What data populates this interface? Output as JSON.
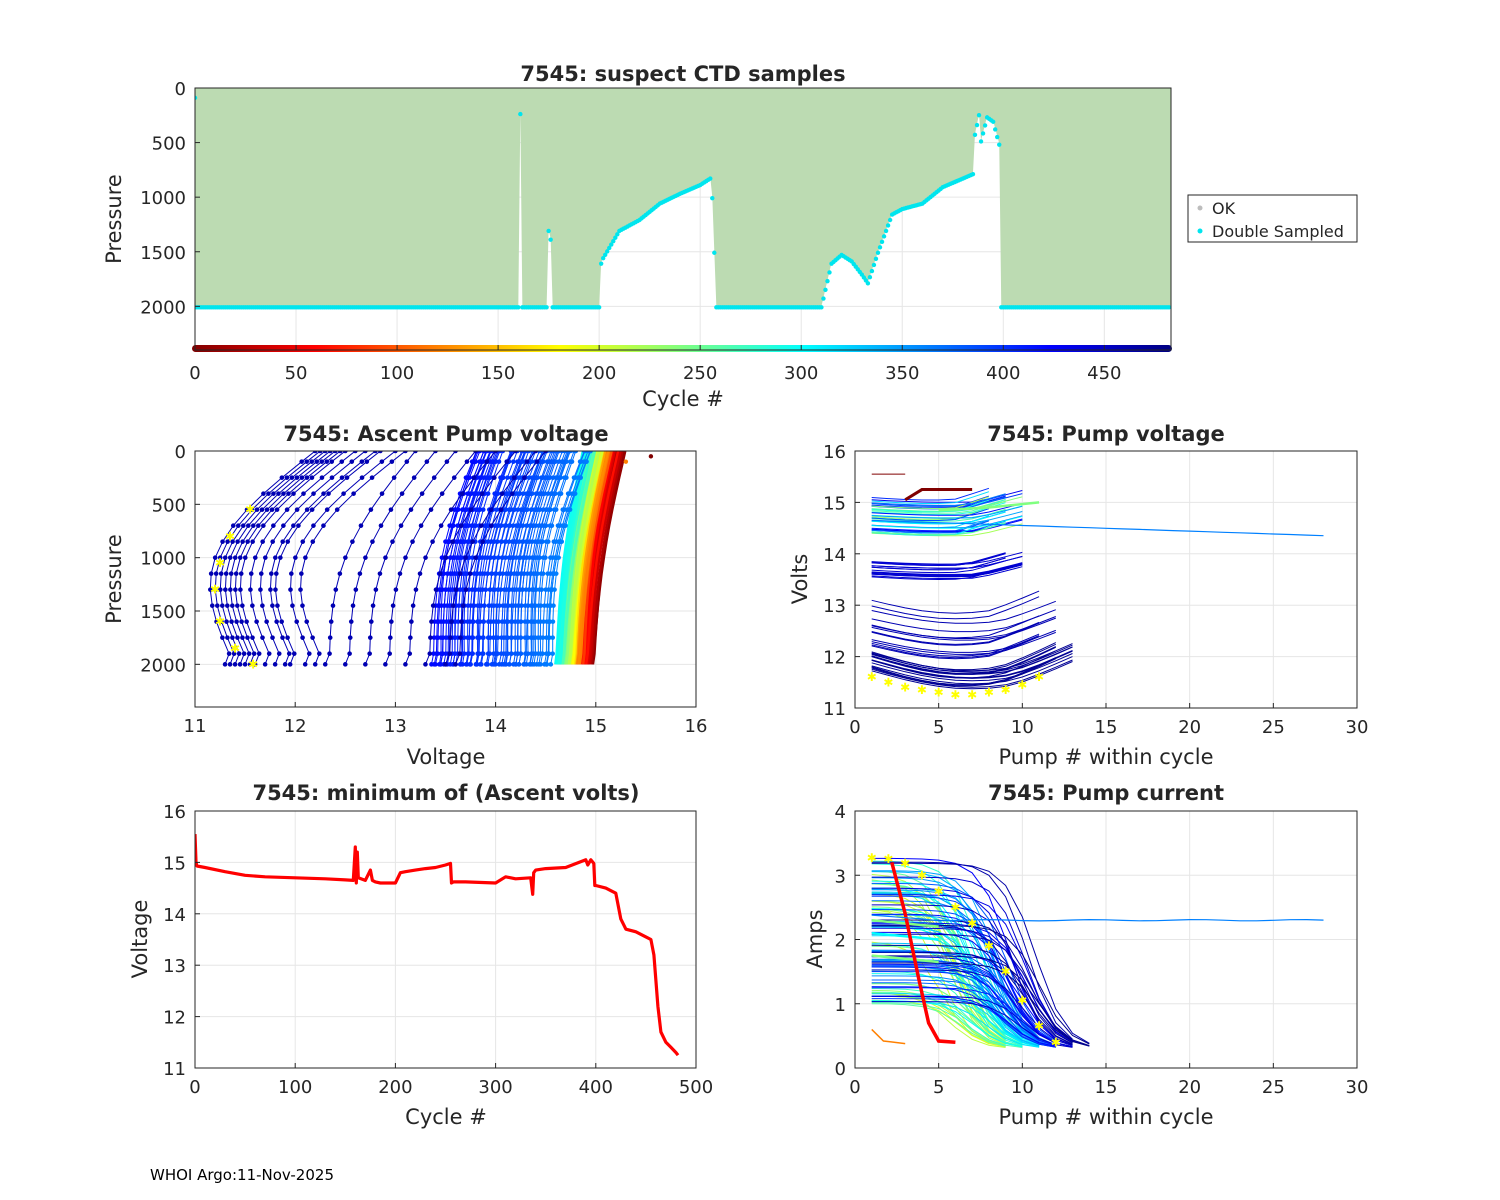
{
  "footer": "WHOI Argo:11-Nov-2025",
  "colors": {
    "ok": "#bcdbb2",
    "double": "#00e5ee",
    "min_line": "#ff0000",
    "star": "#ffff00",
    "grid": "#e6e6e6",
    "axis": "#262626"
  },
  "chart_data": [
    {
      "id": "suspect",
      "type": "area",
      "title": "7545: suspect CTD samples",
      "xlabel": "Cycle #",
      "ylabel": "Pressure",
      "xlim": [
        0,
        483
      ],
      "ylim": [
        2400,
        0
      ],
      "xticks": [
        0,
        50,
        100,
        150,
        200,
        250,
        300,
        350,
        400,
        450
      ],
      "yticks": [
        0,
        500,
        1000,
        1500,
        2000
      ],
      "legend": {
        "position": "right",
        "entries": [
          "OK",
          "Double Sampled"
        ]
      },
      "profile_depth": {
        "cycles": [
          0,
          160,
          161,
          162,
          174,
          175,
          176,
          177,
          178,
          200,
          201,
          202,
          210,
          220,
          230,
          240,
          250,
          255,
          256,
          258,
          259,
          300,
          305,
          310,
          315,
          320,
          325,
          330,
          333,
          338,
          345,
          350,
          360,
          370,
          380,
          385,
          386,
          388,
          389,
          392,
          395,
          398,
          399,
          400,
          483
        ],
        "pressure": [
          2000,
          2000,
          230,
          2000,
          2000,
          1300,
          1380,
          2000,
          2000,
          2000,
          1600,
          1550,
          1300,
          1200,
          1050,
          960,
          880,
          820,
          1000,
          2000,
          2000,
          2000,
          2000,
          2000,
          1600,
          1520,
          1580,
          1700,
          1780,
          1500,
          1150,
          1100,
          1050,
          900,
          820,
          780,
          420,
          240,
          480,
          260,
          300,
          510,
          2000,
          2000,
          2000
        ]
      }
    },
    {
      "id": "ascent",
      "type": "line",
      "title": "7545: Ascent Pump voltage",
      "xlabel": "Voltage",
      "ylabel": "Pressure",
      "xlim": [
        11,
        16
      ],
      "ylim": [
        2400,
        0
      ],
      "xticks": [
        11,
        12,
        13,
        14,
        15,
        16
      ],
      "yticks": [
        0,
        500,
        1000,
        1500,
        2000
      ],
      "series_summary": "one curve per cycle; voltage at 2000 dbar ranges 11.3-14.9 V, colored by cycle number"
    },
    {
      "id": "pumpv",
      "type": "line",
      "title": "7545: Pump voltage",
      "xlabel": "Pump # within cycle",
      "ylabel": "Volts",
      "xlim": [
        0,
        30
      ],
      "ylim": [
        11,
        16
      ],
      "xticks": [
        0,
        5,
        10,
        15,
        20,
        25,
        30
      ],
      "yticks": [
        11,
        12,
        13,
        14,
        15,
        16
      ],
      "series_summary": "per-cycle pump voltage vs pump index; one long cycle with 28 pumps near 14.5 V"
    },
    {
      "id": "minv",
      "type": "line",
      "title": "7545: minimum of (Ascent volts)",
      "xlabel": "Cycle #",
      "ylabel": "Voltage",
      "xlim": [
        0,
        500
      ],
      "ylim": [
        11,
        16
      ],
      "xticks": [
        0,
        100,
        200,
        300,
        400,
        500
      ],
      "yticks": [
        11,
        12,
        13,
        14,
        15,
        16
      ],
      "series": [
        {
          "name": "minimum ascent voltage",
          "x": [
            0,
            1,
            2,
            10,
            30,
            50,
            70,
            100,
            130,
            150,
            158,
            160,
            161,
            162,
            163,
            170,
            175,
            177,
            180,
            185,
            195,
            200,
            205,
            210,
            220,
            230,
            240,
            250,
            255,
            256,
            258,
            270,
            300,
            310,
            320,
            335,
            337,
            338,
            340,
            350,
            370,
            390,
            392,
            395,
            398,
            399,
            400,
            410,
            420,
            425,
            430,
            440,
            450,
            455,
            458,
            462,
            465,
            470,
            475,
            480,
            482
          ],
          "y": [
            15.55,
            15.0,
            14.93,
            14.9,
            14.82,
            14.75,
            14.72,
            14.7,
            14.68,
            14.66,
            14.65,
            15.3,
            14.6,
            15.2,
            14.7,
            14.65,
            14.85,
            14.65,
            14.62,
            14.6,
            14.6,
            14.6,
            14.8,
            14.82,
            14.85,
            14.88,
            14.9,
            14.95,
            14.98,
            14.6,
            14.62,
            14.62,
            14.6,
            14.72,
            14.68,
            14.7,
            14.38,
            14.8,
            14.85,
            14.88,
            14.9,
            15.05,
            14.95,
            15.05,
            14.98,
            14.55,
            14.55,
            14.5,
            14.4,
            13.9,
            13.7,
            13.65,
            13.55,
            13.5,
            13.2,
            12.2,
            11.7,
            11.5,
            11.4,
            11.3,
            11.25
          ]
        }
      ]
    },
    {
      "id": "pumpc",
      "type": "line",
      "title": "7545: Pump current",
      "xlabel": "Pump # within cycle",
      "ylabel": "Amps",
      "xlim": [
        0,
        30
      ],
      "ylim": [
        0,
        4
      ],
      "xticks": [
        0,
        5,
        10,
        15,
        20,
        25,
        30
      ],
      "yticks": [
        0,
        1,
        2,
        3,
        4
      ],
      "series_summary": "per-cycle pump current decreasing from ~3.3 A to ~0.3 A; one long cycle near 2.3 A out to pump 28"
    }
  ]
}
